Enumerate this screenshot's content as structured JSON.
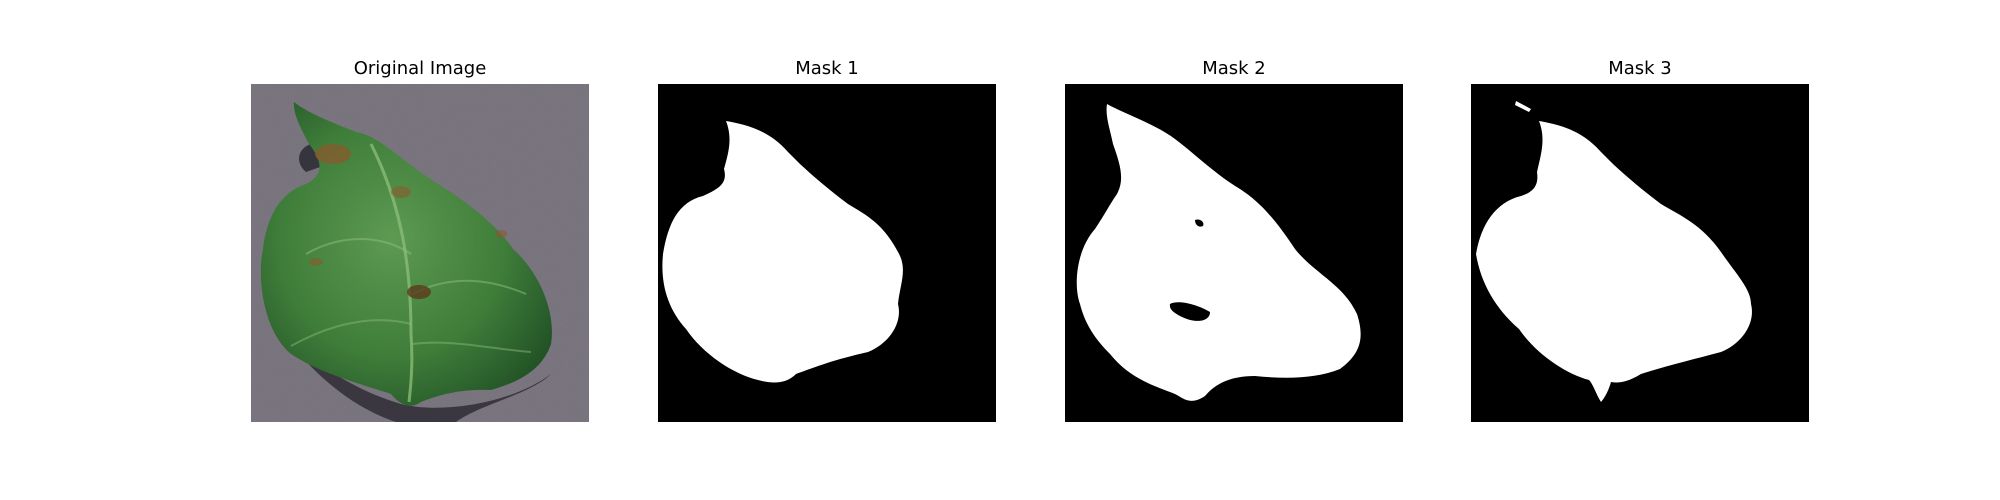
{
  "figure": {
    "panels": [
      {
        "title": "Original Image",
        "kind": "photo"
      },
      {
        "title": "Mask 1",
        "kind": "mask"
      },
      {
        "title": "Mask 2",
        "kind": "mask"
      },
      {
        "title": "Mask 3",
        "kind": "mask"
      }
    ]
  },
  "colors": {
    "mask_background": "#000000",
    "mask_foreground": "#ffffff",
    "photo_background": "#7d7882",
    "leaf_green": "#3f7e3a",
    "leaf_dark": "#1d4a22"
  }
}
